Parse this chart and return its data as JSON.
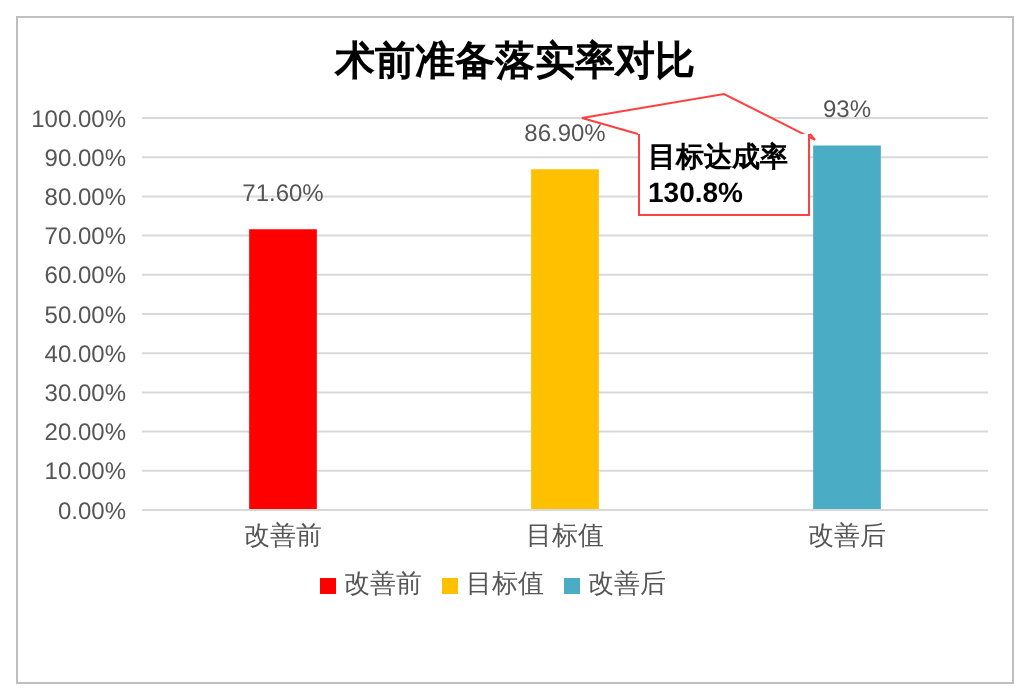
{
  "chart_data": {
    "type": "bar",
    "title": "术前准备落实率对比",
    "categories": [
      "改善前",
      "目标值",
      "改善后"
    ],
    "stacked": true,
    "series": [
      {
        "name": "改善前",
        "color": "#ff0000",
        "values": [
          71.6,
          null,
          null
        ],
        "value_labels": [
          "71.60%",
          null,
          null
        ]
      },
      {
        "name": "目标值",
        "color": "#ffc000",
        "values": [
          null,
          86.9,
          null
        ],
        "value_labels": [
          null,
          "86.90%",
          null
        ]
      },
      {
        "name": "改善后",
        "color": "#4bacc6",
        "values": [
          null,
          null,
          93
        ],
        "value_labels": [
          null,
          null,
          "93%"
        ]
      }
    ],
    "ylim": [
      0,
      100
    ],
    "yticks": [
      {
        "value": 0,
        "label": "0.00%"
      },
      {
        "value": 10,
        "label": "10.00%"
      },
      {
        "value": 20,
        "label": "20.00%"
      },
      {
        "value": 30,
        "label": "30.00%"
      },
      {
        "value": 40,
        "label": "40.00%"
      },
      {
        "value": 50,
        "label": "50.00%"
      },
      {
        "value": 60,
        "label": "60.00%"
      },
      {
        "value": 70,
        "label": "70.00%"
      },
      {
        "value": 80,
        "label": "80.00%"
      },
      {
        "value": 90,
        "label": "90.00%"
      },
      {
        "value": 100,
        "label": "100.00%"
      }
    ],
    "grid": "y",
    "legend": "bottom",
    "annotations": [
      {
        "text": "目标达成率130.8%",
        "x": "改善后",
        "y": 93
      }
    ]
  }
}
